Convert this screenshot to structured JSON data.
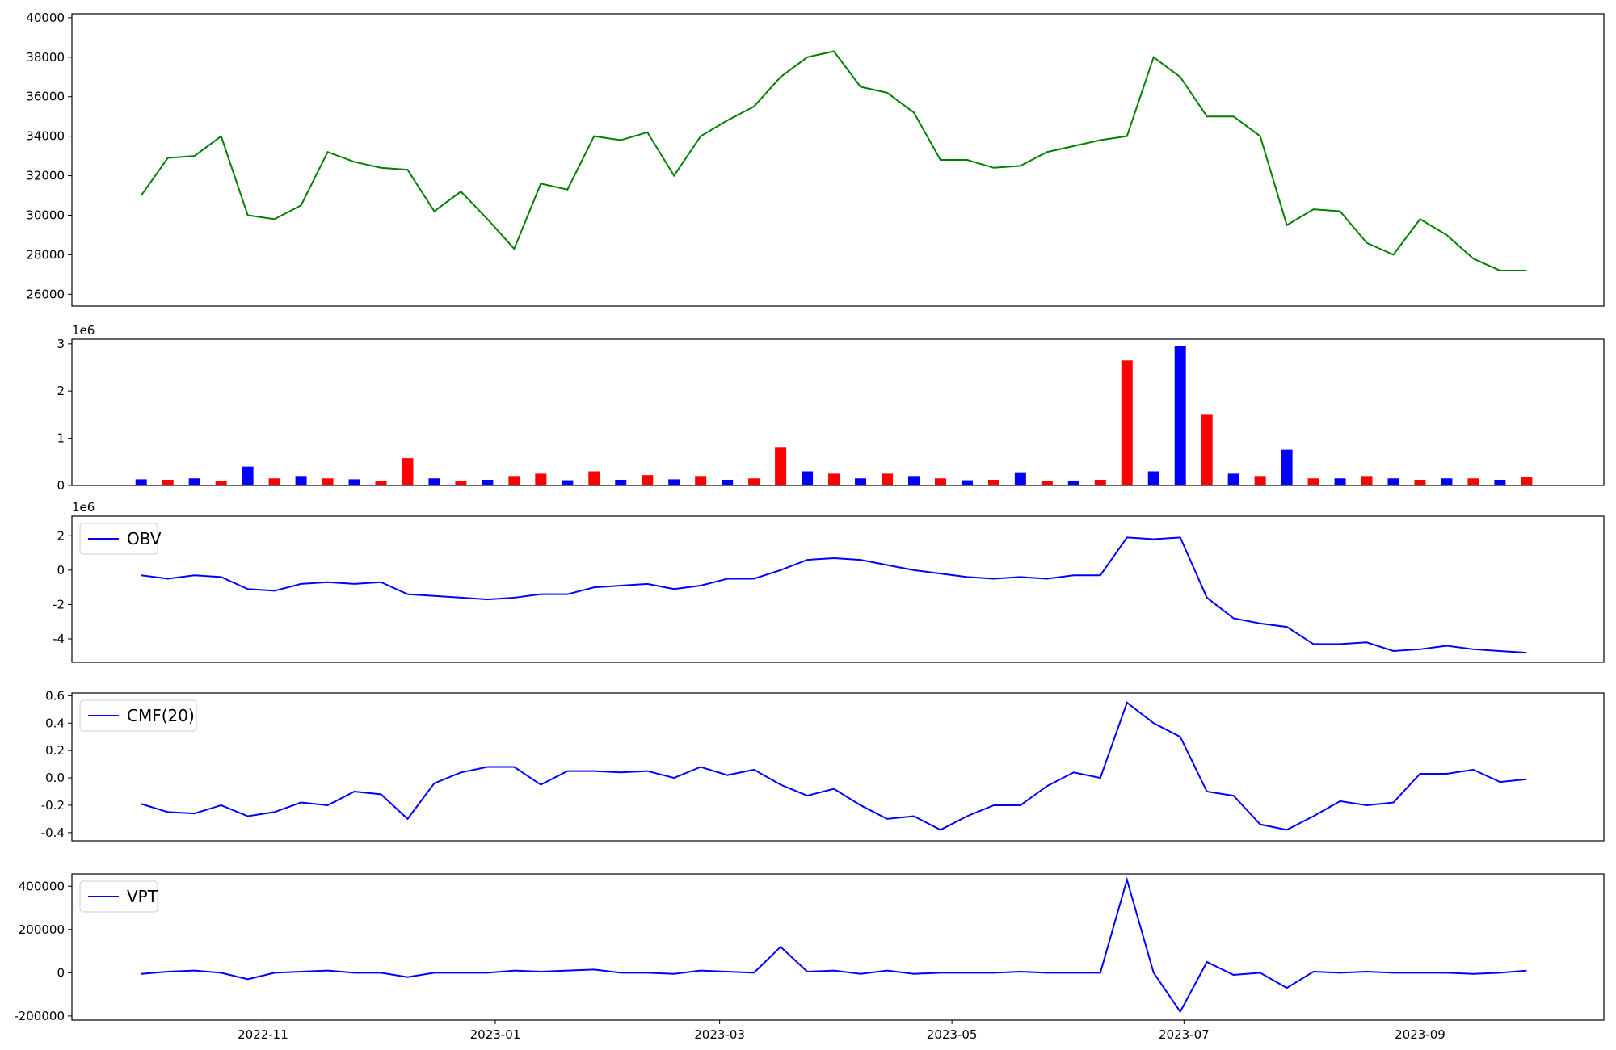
{
  "chart_data": [
    {
      "type": "line",
      "xlim": [
        -2.6,
        54.9
      ],
      "ylim": [
        25400,
        40200
      ],
      "yticks": [
        26000,
        28000,
        30000,
        32000,
        34000,
        36000,
        38000,
        40000
      ],
      "series": [
        {
          "color": "green",
          "values": [
            31000,
            32900,
            33000,
            34000,
            30000,
            29800,
            30500,
            33200,
            32700,
            32400,
            32300,
            30200,
            31200,
            29800,
            28300,
            31600,
            31300,
            34000,
            33800,
            34200,
            32000,
            34000,
            34800,
            35500,
            37000,
            38000,
            38300,
            36500,
            36200,
            35200,
            32800,
            32800,
            32400,
            32500,
            33200,
            33500,
            33800,
            34000,
            38000,
            37000,
            35000,
            35000,
            34000,
            29500,
            30300,
            30200,
            28600,
            28000,
            29800,
            29000,
            27800,
            27200,
            27200
          ]
        }
      ]
    },
    {
      "type": "bar",
      "xlim": [
        -2.6,
        54.9
      ],
      "ylim": [
        0,
        3100000
      ],
      "y_offset_label": "1e6",
      "yticks": [
        {
          "value": 0,
          "label": "0"
        },
        {
          "value": 1000000,
          "label": "1"
        },
        {
          "value": 2000000,
          "label": "2"
        },
        {
          "value": 3000000,
          "label": "3"
        }
      ],
      "values": [
        130000,
        120000,
        150000,
        100000,
        400000,
        150000,
        200000,
        150000,
        130000,
        90000,
        580000,
        150000,
        100000,
        120000,
        200000,
        250000,
        110000,
        300000,
        120000,
        220000,
        130000,
        200000,
        120000,
        150000,
        800000,
        300000,
        250000,
        150000,
        250000,
        200000,
        150000,
        110000,
        120000,
        280000,
        100000,
        100000,
        120000,
        2650000,
        300000,
        2950000,
        1500000,
        250000,
        200000,
        760000,
        150000,
        150000,
        200000,
        150000,
        120000,
        150000,
        150000,
        120000,
        180000
      ],
      "colors": [
        "blue",
        "red",
        "blue",
        "red",
        "blue",
        "red",
        "blue",
        "red",
        "blue",
        "red",
        "red",
        "blue",
        "red",
        "blue",
        "red",
        "red",
        "blue",
        "red",
        "blue",
        "red",
        "blue",
        "red",
        "blue",
        "red",
        "red",
        "blue",
        "red",
        "blue",
        "red",
        "blue",
        "red",
        "blue",
        "red",
        "blue",
        "red",
        "blue",
        "red",
        "red",
        "blue",
        "blue",
        "red",
        "blue",
        "red",
        "blue",
        "red",
        "blue",
        "red",
        "blue",
        "red",
        "blue",
        "red",
        "blue",
        "red"
      ]
    },
    {
      "type": "line",
      "xlim": [
        -2.6,
        54.9
      ],
      "ylim": [
        -5360000,
        3140000
      ],
      "y_offset_label": "1e6",
      "legend": "upper left",
      "yticks": [
        {
          "value": -4000000,
          "label": "-4"
        },
        {
          "value": -2000000,
          "label": "-2"
        },
        {
          "value": 0,
          "label": "0"
        },
        {
          "value": 2000000,
          "label": "2"
        }
      ],
      "series": [
        {
          "name": "OBV",
          "color": "blue",
          "values": [
            -300000,
            -500000,
            -300000,
            -400000,
            -1100000,
            -1200000,
            -800000,
            -700000,
            -800000,
            -700000,
            -1400000,
            -1500000,
            -1600000,
            -1700000,
            -1600000,
            -1400000,
            -1400000,
            -1000000,
            -900000,
            -800000,
            -1100000,
            -900000,
            -500000,
            -500000,
            0,
            600000,
            700000,
            600000,
            300000,
            0,
            -200000,
            -400000,
            -500000,
            -400000,
            -500000,
            -300000,
            -300000,
            1900000,
            1800000,
            1900000,
            -1600000,
            -2800000,
            -3100000,
            -3300000,
            -4300000,
            -4300000,
            -4200000,
            -4700000,
            -4600000,
            -4400000,
            -4600000,
            -4700000,
            -4800000
          ]
        }
      ]
    },
    {
      "type": "line",
      "xlim": [
        -2.6,
        54.9
      ],
      "ylim": [
        -0.46,
        0.62
      ],
      "legend": "upper left",
      "yticks": [
        -0.4,
        -0.2,
        {
          "value": 0,
          "label": "0.0"
        },
        0.2,
        0.4,
        0.6
      ],
      "series": [
        {
          "name": "CMF(20)",
          "color": "blue",
          "values": [
            -0.19,
            -0.25,
            -0.26,
            -0.2,
            -0.28,
            -0.25,
            -0.18,
            -0.2,
            -0.1,
            -0.12,
            -0.3,
            -0.04,
            0.04,
            0.08,
            0.08,
            -0.05,
            0.05,
            0.05,
            0.04,
            0.05,
            0.0,
            0.08,
            0.02,
            0.06,
            -0.05,
            -0.13,
            -0.08,
            -0.2,
            -0.3,
            -0.28,
            -0.38,
            -0.28,
            -0.2,
            -0.2,
            -0.06,
            0.04,
            0.0,
            0.55,
            0.4,
            0.3,
            -0.1,
            -0.13,
            -0.34,
            -0.38,
            -0.28,
            -0.17,
            -0.2,
            -0.18,
            0.03,
            0.03,
            0.06,
            -0.03,
            -0.01
          ]
        }
      ]
    },
    {
      "type": "line",
      "xlim": [
        -2.6,
        54.9
      ],
      "ylim": [
        -219000,
        457000
      ],
      "legend": "upper left",
      "yticks": [
        -200000,
        0,
        200000,
        400000
      ],
      "xticks": [
        {
          "value": 4.57,
          "label": "2022-11"
        },
        {
          "value": 13.29,
          "label": "2023-01"
        },
        {
          "value": 21.71,
          "label": "2023-03"
        },
        {
          "value": 30.43,
          "label": "2023-05"
        },
        {
          "value": 39.14,
          "label": "2023-07"
        },
        {
          "value": 48.0,
          "label": "2023-09"
        }
      ],
      "series": [
        {
          "name": "VPT",
          "color": "blue",
          "values": [
            -5000,
            5000,
            10000,
            0,
            -30000,
            0,
            5000,
            10000,
            0,
            0,
            -20000,
            0,
            0,
            0,
            10000,
            5000,
            10000,
            15000,
            0,
            0,
            -5000,
            10000,
            5000,
            0,
            120000,
            5000,
            10000,
            -5000,
            10000,
            -5000,
            0,
            0,
            0,
            5000,
            0,
            0,
            0,
            430000,
            0,
            -180000,
            50000,
            -10000,
            0,
            -70000,
            5000,
            0,
            5000,
            0,
            0,
            0,
            -5000,
            0,
            10000
          ]
        }
      ]
    }
  ]
}
